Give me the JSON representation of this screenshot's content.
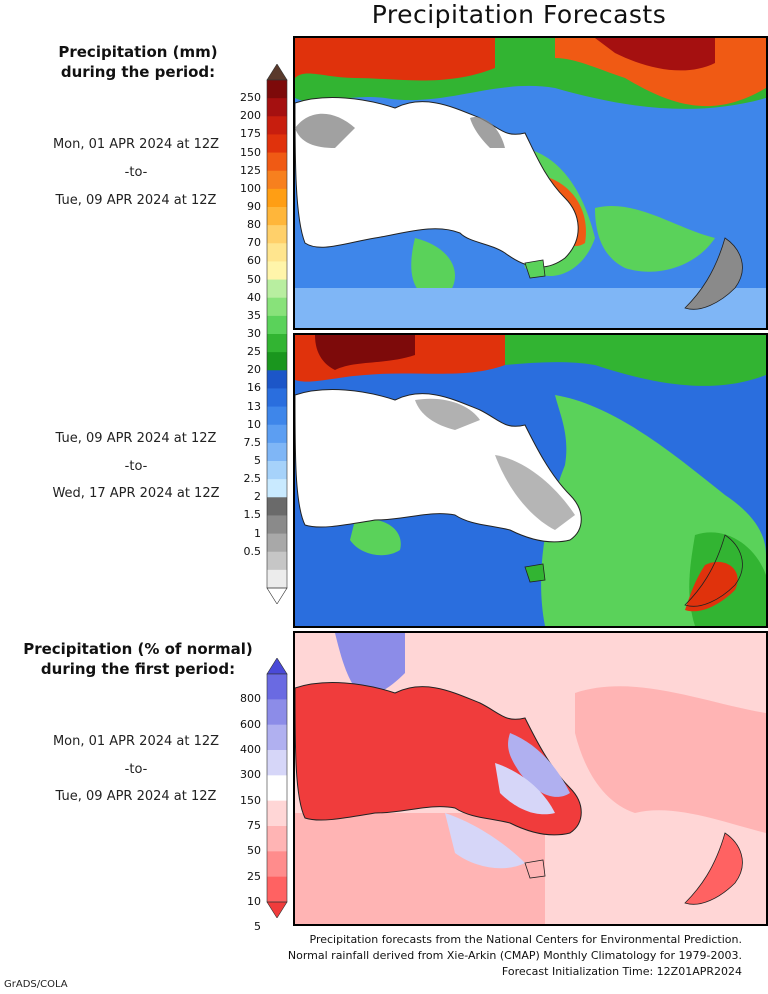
{
  "title": "Precipitation Forecasts",
  "scale1": {
    "title_line1": "Precipitation (mm)",
    "title_line2": "during the period:",
    "ticks": [
      "250",
      "200",
      "175",
      "150",
      "125",
      "100",
      "90",
      "80",
      "70",
      "60",
      "50",
      "40",
      "35",
      "30",
      "25",
      "20",
      "16",
      "13",
      "10",
      "7.5",
      "5",
      "2.5",
      "2",
      "1.5",
      "1",
      "0.5"
    ],
    "colors": [
      "#5a3a2c",
      "#7d0a0a",
      "#a51010",
      "#c81e0e",
      "#e0320c",
      "#f05a14",
      "#f7801e",
      "#ff9e14",
      "#ffb63a",
      "#ffd06a",
      "#ffe58e",
      "#fff5aa",
      "#b8eea0",
      "#88e27a",
      "#5ad25a",
      "#32b432",
      "#1a961e",
      "#1c56c8",
      "#2a6ede",
      "#3e86ea",
      "#5c9ef2",
      "#7fb6f6",
      "#a6d2fa",
      "#c9eaff",
      "#6a6a6a",
      "#8a8a8a",
      "#a8a8a8",
      "#c6c6c6",
      "#ececec",
      "#ffffff"
    ]
  },
  "period1": {
    "start": "Mon, 01 APR 2024 at 12Z",
    "sep": "-to-",
    "end": "Tue, 09 APR 2024 at 12Z"
  },
  "period2": {
    "start": "Tue, 09 APR 2024 at 12Z",
    "sep": "-to-",
    "end": "Wed, 17 APR 2024 at 12Z"
  },
  "scale2": {
    "title_line1": "Precipitation (% of normal)",
    "title_line2": "during the first period:",
    "ticks": [
      "800",
      "600",
      "400",
      "300",
      "150",
      "75",
      "50",
      "25",
      "10",
      "5"
    ],
    "colors": [
      "#4a4ad8",
      "#6a6ae2",
      "#8c8ce8",
      "#b0b0f0",
      "#d6d6f8",
      "#ffffff",
      "#ffd6d6",
      "#ffb4b4",
      "#ff8c8c",
      "#ff6262",
      "#f03c3c"
    ]
  },
  "footer": {
    "line1": "Precipitation forecasts from the National Centers for Environmental Prediction.",
    "line2": "Normal rainfall derived from Xie-Arkin (CMAP) Monthly Climatology for 1979-2003.",
    "line3": "Forecast Initialization Time: 12Z01APR2024"
  },
  "credit": "GrADS/COLA"
}
